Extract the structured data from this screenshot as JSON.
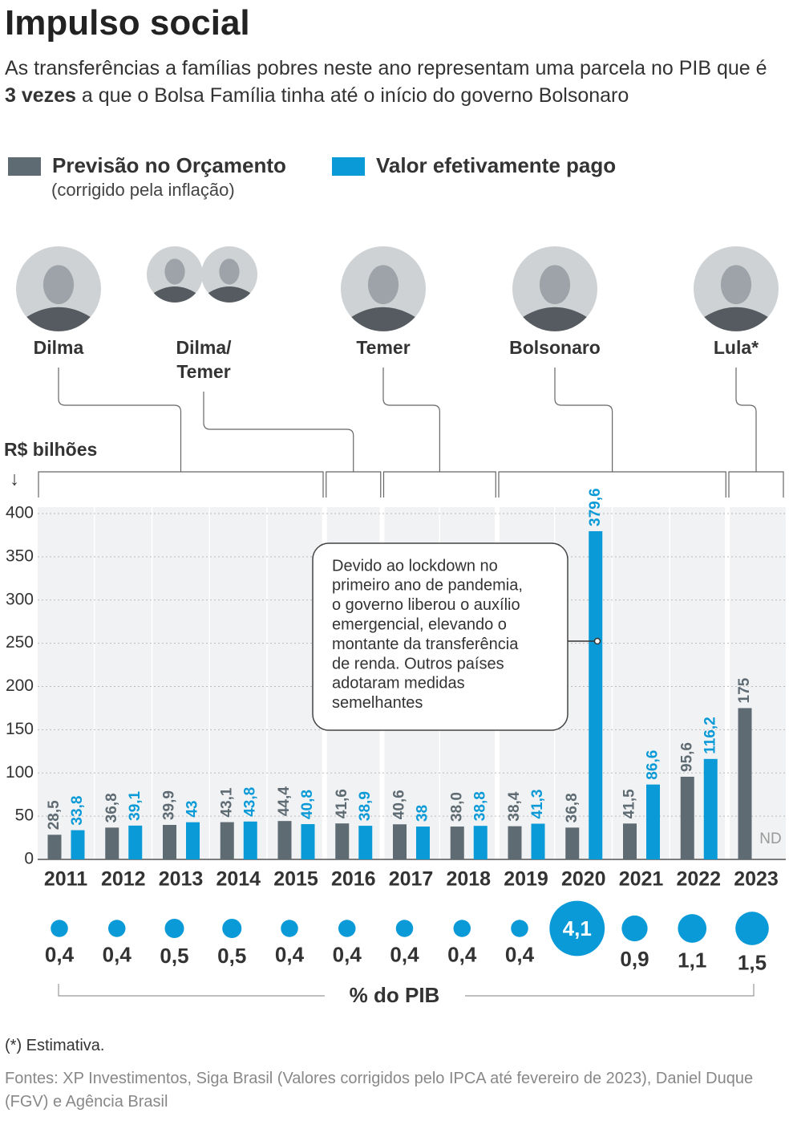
{
  "chart_data": {
    "type": "bar",
    "title": "Impulso social",
    "subtitle_parts": [
      "As transferências a famílias pobres neste ano representam uma parcela no PIB que é ",
      "3 vezes",
      " a que o Bolsa Família tinha até o início do governo Bolsonaro"
    ],
    "legend_note": "(corrigido pela inflação)",
    "y_label": "R$ bilhões",
    "categories": [
      "2011",
      "2012",
      "2013",
      "2014",
      "2015",
      "2016",
      "2017",
      "2018",
      "2019",
      "2020",
      "2021",
      "2022",
      "2023"
    ],
    "series": [
      {
        "name": "Previsão no Orçamento",
        "color": "#5f6b73",
        "values": [
          28.5,
          36.8,
          39.9,
          43.1,
          44.4,
          41.6,
          40.6,
          38.0,
          38.4,
          36.8,
          41.5,
          95.6,
          175
        ],
        "value_labels": [
          "28,5",
          "36,8",
          "39,9",
          "43,1",
          "44,4",
          "41,6",
          "40,6",
          "38,0",
          "38,4",
          "36,8",
          "41,5",
          "95,6",
          "175"
        ]
      },
      {
        "name": "Valor efetivamente pago",
        "color": "#0a9ad7",
        "values": [
          33.8,
          39.1,
          43,
          43.8,
          40.8,
          38.9,
          38,
          38.8,
          41.3,
          379.6,
          86.6,
          116.2,
          null
        ],
        "value_labels": [
          "33,8",
          "39,1",
          "43",
          "43,8",
          "40,8",
          "38,9",
          "38",
          "38,8",
          "41,3",
          "379,6",
          "86,6",
          "116,2",
          "ND"
        ]
      }
    ],
    "ylim": [
      0,
      400
    ],
    "yticks": [
      0,
      50,
      100,
      150,
      200,
      250,
      300,
      350,
      400
    ],
    "grid": true,
    "presidents": [
      [
        "Dilma"
      ],
      [
        "Dilma/",
        "Temer"
      ],
      [
        "Temer"
      ],
      [
        "Bolsonaro"
      ],
      [
        "Lula*"
      ]
    ],
    "annotation": [
      "Devido ao lockdown no",
      "primeiro ano de pandemia,",
      "o governo liberou o auxílio",
      "emergencial, elevando o",
      "montante da transferência",
      "de renda. Outros países",
      "adotaram medidas",
      "semelhantes"
    ],
    "pib": {
      "label": "% do PIB",
      "color": "#0a9ad7",
      "values": [
        0.4,
        0.4,
        0.5,
        0.5,
        0.4,
        0.4,
        0.4,
        0.4,
        0.4,
        4.1,
        0.9,
        1.1,
        1.5
      ],
      "value_labels": [
        "0,4",
        "0,4",
        "0,5",
        "0,5",
        "0,4",
        "0,4",
        "0,4",
        "0,4",
        "0,4",
        "4,1",
        "0,9",
        "1,1",
        "1,5"
      ]
    },
    "footnote": "(*) Estimativa.",
    "source": "Fontes: XP Investimentos, Siga Brasil (Valores corrigidos pelo IPCA até fevereiro de 2023), Daniel Duque (FGV) e Agência Brasil"
  }
}
